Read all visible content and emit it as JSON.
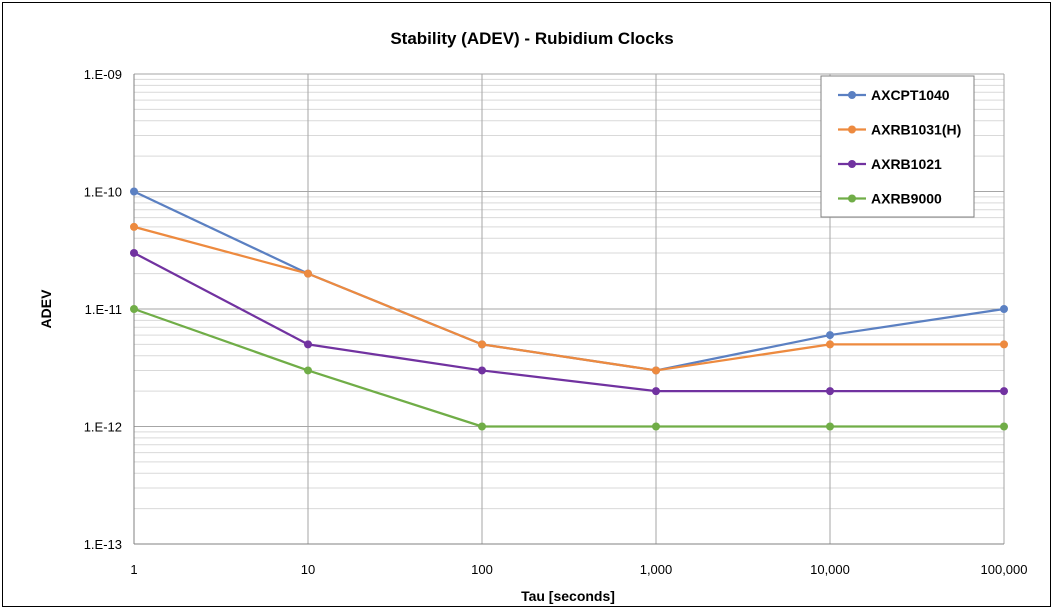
{
  "chart_data": {
    "type": "line",
    "title": "Stability (ADEV) - Rubidium Clocks",
    "xlabel": "Tau [seconds]",
    "ylabel": "ADEV",
    "x_scale": "log",
    "y_scale": "log",
    "x": [
      1,
      10,
      100,
      1000,
      10000,
      100000
    ],
    "x_tick_labels": [
      "1",
      "10",
      "100",
      "1,000",
      "10,000",
      "100,000"
    ],
    "y_tick_values": [
      1e-13,
      1e-12,
      1e-11,
      1e-10,
      1e-09
    ],
    "y_tick_labels": [
      "1.E-13",
      "1.E-12",
      "1.E-11",
      "1.E-10",
      "1.E-09"
    ],
    "xlim": [
      1,
      100000
    ],
    "ylim": [
      1e-13,
      1e-09
    ],
    "grid": true,
    "legend_position": "top-right",
    "series": [
      {
        "name": "AXCPT1040",
        "color": "#5B80C2",
        "values": [
          1e-10,
          2e-11,
          5e-12,
          3e-12,
          6e-12,
          1e-11
        ]
      },
      {
        "name": "AXRB1031(H)",
        "color": "#ED8A3F",
        "values": [
          5e-11,
          2e-11,
          5e-12,
          3e-12,
          5e-12,
          5e-12
        ]
      },
      {
        "name": "AXRB1021",
        "color": "#7132A0",
        "values": [
          3e-11,
          5e-12,
          3e-12,
          2e-12,
          2e-12,
          2e-12
        ]
      },
      {
        "name": "AXRB9000",
        "color": "#70AD47",
        "values": [
          1e-11,
          3e-12,
          1e-12,
          1e-12,
          1e-12,
          1e-12
        ]
      }
    ]
  }
}
